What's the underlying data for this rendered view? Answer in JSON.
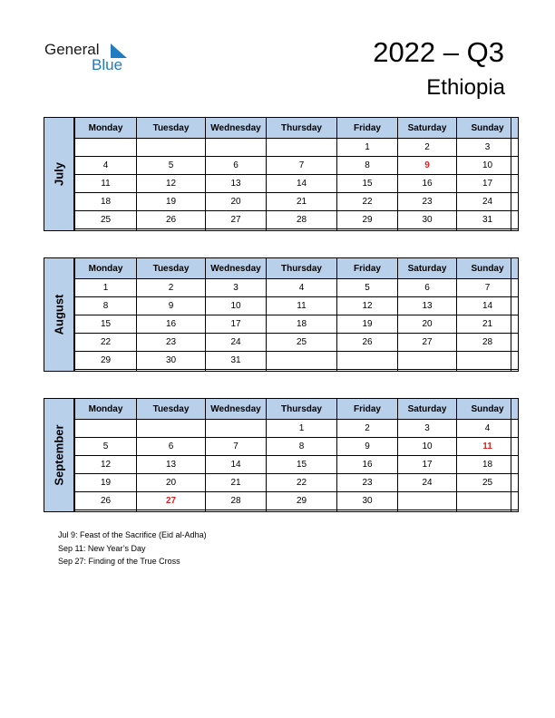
{
  "logo": {
    "general": "General",
    "blue": "Blue"
  },
  "title": "2022 – Q3",
  "country": "Ethiopia",
  "weekdays": [
    "Monday",
    "Tuesday",
    "Wednesday",
    "Thursday",
    "Friday",
    "Saturday",
    "Sunday"
  ],
  "months": [
    {
      "name": "July",
      "weeks": [
        [
          "",
          "",
          "",
          "",
          "1",
          "2",
          "3"
        ],
        [
          "4",
          "5",
          "6",
          "7",
          "8",
          "9",
          "10"
        ],
        [
          "11",
          "12",
          "13",
          "14",
          "15",
          "16",
          "17"
        ],
        [
          "18",
          "19",
          "20",
          "21",
          "22",
          "23",
          "24"
        ],
        [
          "25",
          "26",
          "27",
          "28",
          "29",
          "30",
          "31"
        ],
        [
          "",
          "",
          "",
          "",
          "",
          "",
          ""
        ]
      ],
      "holidays": [
        "9"
      ]
    },
    {
      "name": "August",
      "weeks": [
        [
          "1",
          "2",
          "3",
          "4",
          "5",
          "6",
          "7"
        ],
        [
          "8",
          "9",
          "10",
          "11",
          "12",
          "13",
          "14"
        ],
        [
          "15",
          "16",
          "17",
          "18",
          "19",
          "20",
          "21"
        ],
        [
          "22",
          "23",
          "24",
          "25",
          "26",
          "27",
          "28"
        ],
        [
          "29",
          "30",
          "31",
          "",
          "",
          "",
          ""
        ],
        [
          "",
          "",
          "",
          "",
          "",
          "",
          ""
        ]
      ],
      "holidays": []
    },
    {
      "name": "September",
      "weeks": [
        [
          "",
          "",
          "",
          "1",
          "2",
          "3",
          "4"
        ],
        [
          "5",
          "6",
          "7",
          "8",
          "9",
          "10",
          "11"
        ],
        [
          "12",
          "13",
          "14",
          "15",
          "16",
          "17",
          "18"
        ],
        [
          "19",
          "20",
          "21",
          "22",
          "23",
          "24",
          "25"
        ],
        [
          "26",
          "27",
          "28",
          "29",
          "30",
          "",
          ""
        ],
        [
          "",
          "",
          "",
          "",
          "",
          "",
          ""
        ]
      ],
      "holidays": [
        "11",
        "27"
      ]
    }
  ],
  "notes": [
    "Jul 9: Feast of the Sacrifice (Eid al-Adha)",
    "Sep 11: New Year’s Day",
    "Sep 27: Finding of the True Cross"
  ],
  "colors": {
    "header_bg": "#b8d0ea",
    "holiday": "#e02020",
    "brand_blue": "#1f7bc2"
  }
}
